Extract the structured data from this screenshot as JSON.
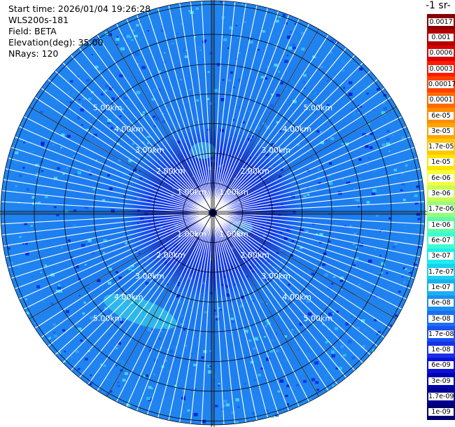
{
  "info": {
    "start_time": "Start time: 2026/01/04 19:26:28",
    "station": "WLS200s-181",
    "field": "Field: BETA",
    "elevation": "Elevation(deg): 35.00",
    "nrays": "NRays: 120"
  },
  "colorbar": {
    "title": "-1 sr-",
    "labels": [
      "0.0017",
      "0.001",
      "0.0006",
      "0.0003",
      "0.00017",
      "0.0001",
      "6e-05",
      "3e-05",
      "1.7e-05",
      "1e-05",
      "6e-06",
      "3e-06",
      "1.7e-06",
      "1e-06",
      "6e-07",
      "3e-07",
      "1.7e-07",
      "1e-07",
      "6e-08",
      "3e-08",
      "1.7e-08",
      "1e-08",
      "6e-09",
      "3e-09",
      "1.7e-09",
      "1e-09"
    ],
    "colors": [
      "#8b0000",
      "#b30000",
      "#d90000",
      "#ff1a00",
      "#ff4000",
      "#ff6a00",
      "#ff8c00",
      "#ffa500",
      "#ffc800",
      "#ffe600",
      "#f4ff3d",
      "#c8ff50",
      "#96ff7a",
      "#5affaa",
      "#3cffd0",
      "#20ecec",
      "#1ad0f0",
      "#1ab0f0",
      "#1a90f0",
      "#1a70f0",
      "#1a50f0",
      "#1a30e8",
      "#0a10d8",
      "#0000b0",
      "#000090",
      "#000070"
    ]
  },
  "range_rings": {
    "labels": [
      "1.00km",
      "2.00km",
      "3.00km",
      "4.00km",
      "5.00km"
    ]
  },
  "colors": {
    "field_base": "#1e7cf0",
    "near_field": "#0a1ee0",
    "grid": "#000000",
    "ray_gap": "#ffffff"
  }
}
